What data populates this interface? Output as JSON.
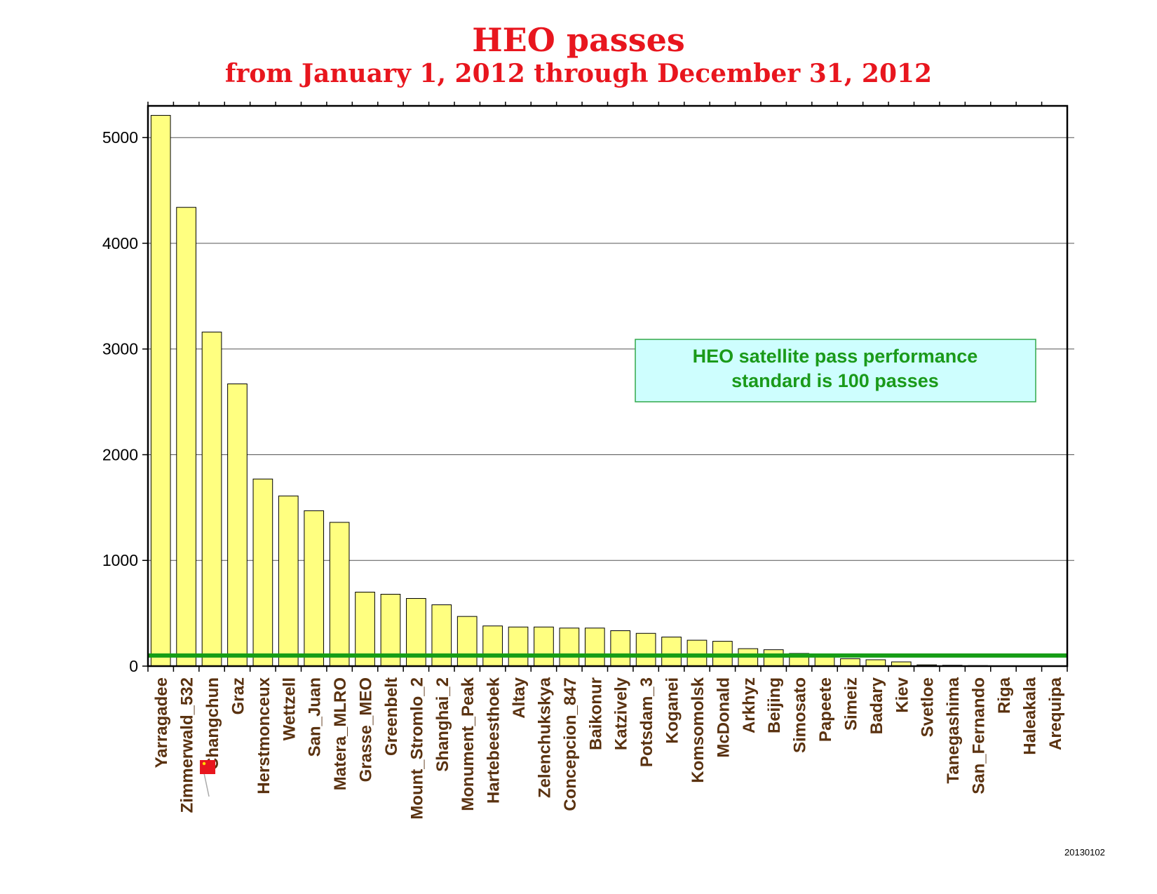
{
  "chart_data": {
    "type": "bar",
    "title": "HEO passes",
    "subtitle": "from January 1, 2012 through December 31, 2012",
    "categories": [
      "Yarragadee",
      "Zimmerwald_532",
      "Changchun",
      "Graz",
      "Herstmonceux",
      "Wettzell",
      "San_Juan",
      "Matera_MLRO",
      "Grasse_MEO",
      "Greenbelt",
      "Mount_Stromlo_2",
      "Shanghai_2",
      "Monument_Peak",
      "Hartebeesthoek",
      "Altay",
      "Zelenchukskya",
      "Concepcion_847",
      "Baikonur",
      "Katzively",
      "Potsdam_3",
      "Koganei",
      "Komsomolsk",
      "McDonald",
      "Arkhyz",
      "Beijing",
      "Simosato",
      "Papeete",
      "Simeiz",
      "Badary",
      "Kiev",
      "Svetloe",
      "Tanegashima",
      "San_Fernando",
      "Riga",
      "Haleakala",
      "Arequipa"
    ],
    "values": [
      5210,
      4340,
      3160,
      2670,
      1770,
      1610,
      1470,
      1360,
      700,
      680,
      640,
      580,
      470,
      380,
      370,
      370,
      360,
      360,
      335,
      310,
      275,
      245,
      235,
      165,
      155,
      120,
      100,
      70,
      60,
      40,
      12,
      8,
      5,
      3,
      2,
      1
    ],
    "ylim": [
      0,
      5300
    ],
    "yticks": [
      0,
      1000,
      2000,
      3000,
      4000,
      5000
    ],
    "grid": true,
    "xlabel": "",
    "ylabel": "",
    "standard_line": 100,
    "bar_color": "#ffff80",
    "standard_line_color": "#169d16",
    "annotation": {
      "line1": "HEO satellite pass performance",
      "line2": "standard is 100 passes",
      "fill": "#cefefe",
      "border": "#30a84a"
    },
    "flag_category": "Changchun",
    "flag_icon": "china-flag-icon"
  },
  "footer": {
    "date_stamp": "20130102"
  }
}
